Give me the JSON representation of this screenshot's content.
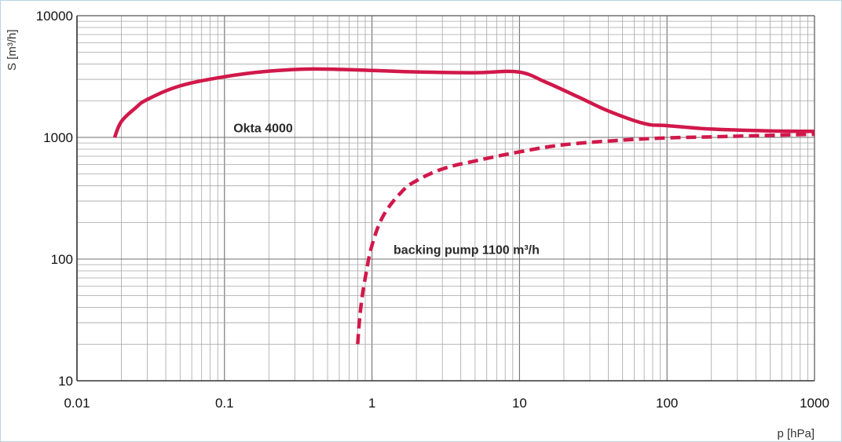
{
  "chart_data": {
    "type": "line",
    "title": "",
    "xlabel": "p [hPa]",
    "ylabel": "S [m³/h]",
    "x_scale": "log",
    "y_scale": "log",
    "xlim": [
      0.01,
      1000
    ],
    "ylim": [
      10,
      10000
    ],
    "x_ticks": [
      "0.01",
      "0.1",
      "1",
      "10",
      "100",
      "1000"
    ],
    "y_ticks": [
      "10",
      "100",
      "1000",
      "10000"
    ],
    "grid": true,
    "series": [
      {
        "name": "Okta 4000",
        "style": "solid",
        "color": "#d1184a",
        "x": [
          0.018,
          0.02,
          0.025,
          0.03,
          0.05,
          0.1,
          0.2,
          0.4,
          1,
          2,
          5,
          9.8,
          15,
          25,
          40,
          70,
          100,
          200,
          500,
          1000
        ],
        "y": [
          1000,
          1350,
          1750,
          2050,
          2650,
          3150,
          3500,
          3650,
          3550,
          3450,
          3400,
          3450,
          2850,
          2150,
          1650,
          1300,
          1250,
          1170,
          1130,
          1120
        ]
      },
      {
        "name": "backing pump 1100 m³/h",
        "style": "dashed",
        "color": "#d1184a",
        "x": [
          0.8,
          0.82,
          0.85,
          0.9,
          1,
          1.2,
          1.6,
          2,
          3,
          5,
          10,
          20,
          50,
          100,
          200,
          500,
          1000
        ],
        "y": [
          20,
          30,
          45,
          70,
          130,
          230,
          360,
          440,
          550,
          640,
          760,
          870,
          950,
          990,
          1010,
          1040,
          1060
        ]
      }
    ],
    "annotations": [
      {
        "text": "Okta 4000",
        "x": 0.115,
        "y": 1100
      },
      {
        "text": "backing pump 1100 m³/h",
        "x": 1.4,
        "y": 110
      }
    ]
  }
}
